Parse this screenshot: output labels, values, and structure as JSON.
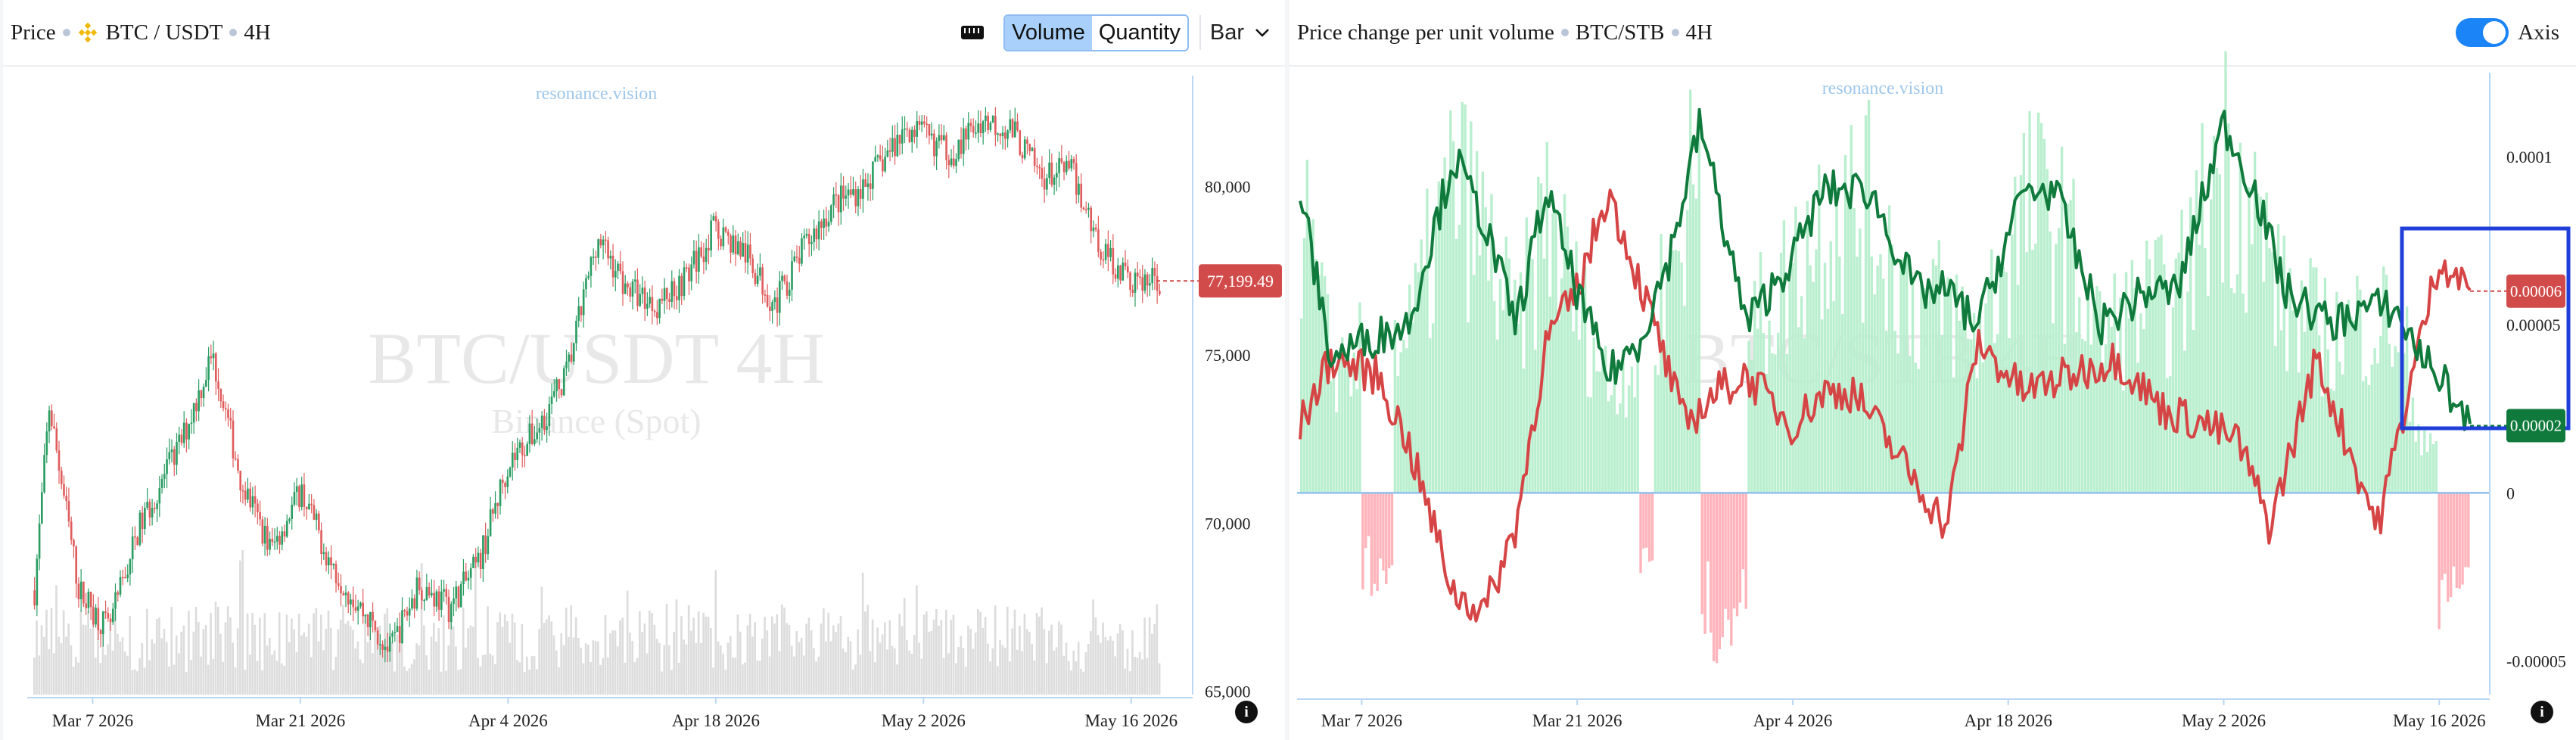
{
  "left": {
    "header": {
      "price_label": "Price",
      "pair": "BTC / USDT",
      "timeframe": "4H",
      "volume_btn": "Volume",
      "quantity_btn": "Quantity",
      "bar_select": "Bar"
    },
    "watermark": "resonance.vision",
    "bg_title": "BTC/USDT 4H",
    "bg_subtitle": "Binance (Spot)",
    "price_tag": "77,199.49",
    "info_icon": "i"
  },
  "right": {
    "header": {
      "title": "Price change per unit volume",
      "pair": "BTC/STB",
      "timeframe": "4H",
      "axis_label": "Axis"
    },
    "watermark": "resonance.vision",
    "bg_title": "BTC/STB 4H",
    "tag_red": "0.00006",
    "tag_green": "0.00002",
    "info_icon": "i"
  },
  "colors": {
    "up": "#2a9d63",
    "down": "#e05c5c",
    "volume": "#dcdcdc",
    "pos_bars": "#b9efcf",
    "neg_bars": "#ffb3ba",
    "green_line": "#0f7a3c",
    "red_line": "#d64545",
    "axis": "#a9cdef",
    "highlight_box": "#1f3fd8"
  },
  "chart_data": [
    {
      "type": "candlestick",
      "title": "BTC/USDT 4H",
      "subtitle": "Binance (Spot)",
      "x_ticks": [
        "Mar 7 2026",
        "Mar 21 2026",
        "Apr 4 2026",
        "Apr 18 2026",
        "May 2 2026",
        "May 16 2026"
      ],
      "y_ticks": [
        65000,
        70000,
        75000,
        80000
      ],
      "y_tick_labels": [
        "65,000",
        "70,000",
        "75,000",
        "80,000"
      ],
      "ylim": [
        64900,
        83300
      ],
      "last_price": 77199.49,
      "close_trend": {
        "dates": [
          "Mar 3",
          "Mar 4",
          "Mar 6",
          "Mar 8",
          "Mar 10",
          "Mar 13",
          "Mar 15",
          "Mar 17",
          "Mar 19",
          "Mar 21",
          "Mar 23",
          "Mar 25",
          "Mar 27",
          "Mar 29",
          "Mar 31",
          "Apr 2",
          "Apr 4",
          "Apr 6",
          "Apr 8",
          "Apr 10",
          "Apr 12",
          "Apr 14",
          "Apr 16",
          "Apr 18",
          "Apr 20",
          "Apr 22",
          "Apr 24",
          "Apr 26",
          "Apr 28",
          "May 1",
          "May 4",
          "May 6",
          "May 8",
          "May 10",
          "May 12",
          "May 14",
          "May 16",
          "May 18"
        ],
        "close": [
          68000,
          73500,
          68000,
          66800,
          69800,
          72500,
          75000,
          71200,
          69200,
          71000,
          68800,
          67500,
          66200,
          68200,
          67500,
          68800,
          71800,
          72800,
          74500,
          78500,
          77000,
          76500,
          77300,
          78800,
          78000,
          76500,
          78200,
          79500,
          80000,
          81800,
          81000,
          82000,
          81700,
          80300,
          80500,
          78200,
          77200,
          77200
        ]
      },
      "volume_series": "gray bars along bottom"
    },
    {
      "type": "line+bar",
      "title": "Price change per unit volume",
      "subtitle": "BTC/STB 4H",
      "x_ticks": [
        "Mar 7 2026",
        "Mar 21 2026",
        "Apr 4 2026",
        "Apr 18 2026",
        "May 2 2026",
        "May 16 2026"
      ],
      "y_ticks": [
        0.0001,
        5e-05,
        0,
        -5e-05
      ],
      "y_tick_labels": [
        "0.0001",
        "0.00005",
        "0",
        "-0.00005"
      ],
      "ylim": [
        -6e-05,
        0.000125
      ],
      "series": [
        {
          "color": "green",
          "x": [
            "Mar 3",
            "Mar 5",
            "Mar 7",
            "Mar 10",
            "Mar 13",
            "Mar 15",
            "Mar 17",
            "Mar 19",
            "Mar 21",
            "Mar 23",
            "Mar 25",
            "Mar 27",
            "Mar 29",
            "Apr 1",
            "Apr 4",
            "Apr 6",
            "Apr 9",
            "Apr 12",
            "Apr 14",
            "Apr 16",
            "Apr 19",
            "Apr 21",
            "Apr 24",
            "Apr 27",
            "Apr 29",
            "May 2",
            "May 4",
            "May 6",
            "May 9",
            "May 11",
            "May 13",
            "May 15",
            "May 16",
            "May 18"
          ],
          "y": [
            9e-05,
            4e-05,
            4.5e-05,
            5e-05,
            0.0001,
            8e-05,
            5e-05,
            9e-05,
            6e-05,
            3.5e-05,
            4.5e-05,
            7e-05,
            0.00011,
            5e-05,
            7e-05,
            9e-05,
            9e-05,
            6e-05,
            6e-05,
            5e-05,
            9e-05,
            9e-05,
            5e-05,
            6e-05,
            6e-05,
            0.00011,
            9e-05,
            6e-05,
            5e-05,
            5.5e-05,
            5.5e-05,
            4e-05,
            3.5e-05,
            2e-05
          ]
        },
        {
          "color": "red",
          "x": [
            "Mar 3",
            "Mar 5",
            "Mar 8",
            "Mar 10",
            "Mar 13",
            "Mar 15",
            "Mar 17",
            "Mar 19",
            "Mar 21",
            "Mar 23",
            "Mar 26",
            "Mar 28",
            "Mar 30",
            "Apr 1",
            "Apr 4",
            "Apr 6",
            "Apr 8",
            "Apr 11",
            "Apr 14",
            "Apr 16",
            "Apr 19",
            "Apr 22",
            "Apr 25",
            "Apr 28",
            "May 1",
            "May 3",
            "May 5",
            "May 8",
            "May 10",
            "May 12",
            "May 14",
            "May 16",
            "May 18"
          ],
          "y": [
            2e-05,
            4e-05,
            3.5e-05,
            1.5e-05,
            -3e-05,
            -3.5e-05,
            -1e-05,
            4.5e-05,
            6e-05,
            9e-05,
            5e-05,
            2e-05,
            3e-05,
            3.5e-05,
            2e-05,
            3e-05,
            3e-05,
            1e-05,
            -1e-05,
            4.5e-05,
            3e-05,
            3.5e-05,
            4e-05,
            2.5e-05,
            2e-05,
            1.5e-05,
            -1e-05,
            4e-05,
            1.5e-05,
            -1e-05,
            3e-05,
            7e-05,
            6e-05
          ]
        }
      ],
      "bars": "green positive / pink negative histogram around 0",
      "last_values": {
        "red": 6e-05,
        "green": 2e-05
      }
    }
  ]
}
